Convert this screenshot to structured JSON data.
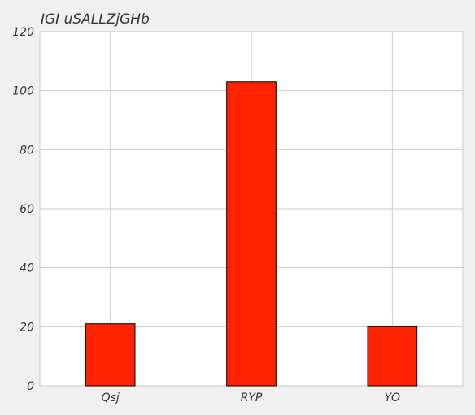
{
  "chart_data": {
    "type": "bar",
    "title": "IGI uSALLZjGHb",
    "categories": [
      "Qsj",
      "RYP",
      "YO"
    ],
    "values": [
      21,
      103,
      20
    ],
    "xlabel": "",
    "ylabel": "",
    "ylim": [
      0,
      120
    ],
    "yticks": [
      0,
      20,
      40,
      60,
      80,
      100,
      120
    ],
    "grid": true,
    "legend": "none",
    "colors": {
      "bar": "#ff2200",
      "bar_edge": "#000000",
      "background": "#ffffff",
      "figure_background": "#f0f0f0",
      "grid": "#cbcbcb",
      "text": "#333333"
    }
  }
}
